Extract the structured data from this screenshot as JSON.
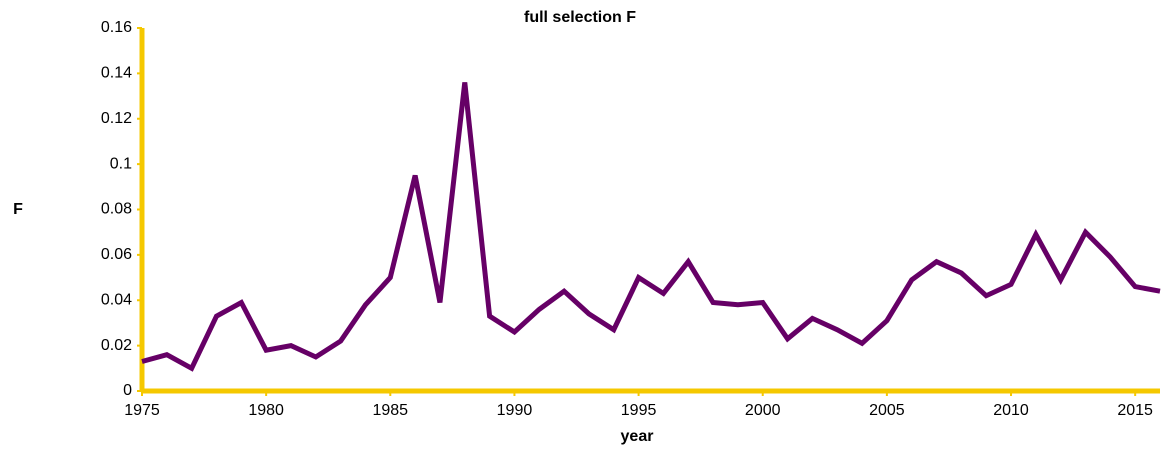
{
  "chart_data": {
    "type": "line",
    "title": "full selection F",
    "x_label": "year",
    "y_label": "F",
    "x": [
      1975,
      1976,
      1977,
      1978,
      1979,
      1980,
      1981,
      1982,
      1983,
      1984,
      1985,
      1986,
      1987,
      1988,
      1989,
      1990,
      1991,
      1992,
      1993,
      1994,
      1995,
      1996,
      1997,
      1998,
      1999,
      2000,
      2001,
      2002,
      2003,
      2004,
      2005,
      2006,
      2007,
      2008,
      2009,
      2010,
      2011,
      2012,
      2013,
      2014,
      2015,
      2016
    ],
    "series": [
      {
        "name": "F",
        "color": "#660066",
        "values": [
          0.013,
          0.016,
          0.01,
          0.033,
          0.039,
          0.018,
          0.02,
          0.015,
          0.022,
          0.038,
          0.05,
          0.095,
          0.039,
          0.136,
          0.033,
          0.026,
          0.036,
          0.044,
          0.034,
          0.027,
          0.05,
          0.043,
          0.057,
          0.039,
          0.038,
          0.039,
          0.023,
          0.032,
          0.027,
          0.021,
          0.031,
          0.049,
          0.057,
          0.052,
          0.042,
          0.047,
          0.069,
          0.049,
          0.07,
          0.059,
          0.046,
          0.044
        ]
      }
    ],
    "xlim": [
      1975,
      2016
    ],
    "xticks": [
      1975,
      1980,
      1985,
      1990,
      1995,
      2000,
      2005,
      2010,
      2015
    ],
    "ylim": [
      0,
      0.16
    ],
    "yticks": [
      0,
      0.02,
      0.04,
      0.06,
      0.08,
      0.1,
      0.12,
      0.14,
      0.16
    ],
    "axis_color": "#f5c800",
    "grid": false
  }
}
